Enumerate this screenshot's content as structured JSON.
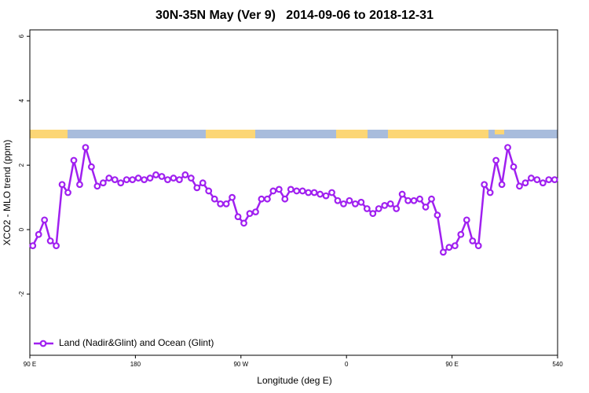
{
  "chart_data": {
    "type": "line",
    "title": "30N-35N May (Ver 9)   2014-09-06 to 2018-12-31",
    "xlabel": "Longitude (deg E)",
    "ylabel": "XCO2 - MLO trend (ppm)",
    "x": [
      92.5,
      97.5,
      102.5,
      107.5,
      112.5,
      117.5,
      122.5,
      127.5,
      132.5,
      137.5,
      142.5,
      147.5,
      152.5,
      157.5,
      162.5,
      167.5,
      172.5,
      177.5,
      182.5,
      187.5,
      192.5,
      197.5,
      202.5,
      207.5,
      212.5,
      217.5,
      222.5,
      227.5,
      232.5,
      237.5,
      242.5,
      247.5,
      252.5,
      257.5,
      262.5,
      267.5,
      272.5,
      277.5,
      282.5,
      287.5,
      292.5,
      297.5,
      302.5,
      307.5,
      312.5,
      317.5,
      322.5,
      327.5,
      332.5,
      337.5,
      342.5,
      347.5,
      352.5,
      357.5,
      362.5,
      367.5,
      372.5,
      377.5,
      382.5,
      387.5,
      392.5,
      397.5,
      402.5,
      407.5,
      412.5,
      417.5,
      422.5,
      427.5,
      432.5,
      437.5,
      442.5,
      447.5,
      452.5,
      457.5,
      462.5,
      467.5,
      472.5,
      477.5,
      482.5,
      487.5,
      492.5,
      497.5,
      502.5,
      507.5,
      512.5,
      517.5,
      522.5,
      527.5,
      532.5,
      537.5
    ],
    "series": [
      {
        "name": "Land (Nadir&Glint) and Ocean (Glint)",
        "color": "#a020f0",
        "values": [
          -0.5,
          -0.15,
          0.3,
          -0.35,
          -0.5,
          1.4,
          1.15,
          2.15,
          1.4,
          2.55,
          1.95,
          1.35,
          1.45,
          1.6,
          1.55,
          1.45,
          1.55,
          1.55,
          1.6,
          1.55,
          1.6,
          1.7,
          1.65,
          1.55,
          1.6,
          1.55,
          1.7,
          1.6,
          1.3,
          1.45,
          1.2,
          0.95,
          0.8,
          0.8,
          1.0,
          0.4,
          0.2,
          0.5,
          0.55,
          0.95,
          0.95,
          1.2,
          1.25,
          0.95,
          1.25,
          1.2,
          1.2,
          1.15,
          1.15,
          1.1,
          1.05,
          1.15,
          0.9,
          0.8,
          0.9,
          0.8,
          0.85,
          0.65,
          0.5,
          0.65,
          0.75,
          0.8,
          0.65,
          1.1,
          0.9,
          0.9,
          0.95,
          0.7,
          0.95,
          0.45,
          -0.7,
          -0.55,
          -0.5,
          -0.15,
          0.3,
          -0.35,
          -0.5,
          1.4,
          1.15,
          2.15,
          1.4,
          2.55,
          1.95,
          1.35,
          1.45,
          1.6,
          1.55,
          1.45,
          1.55,
          1.55
        ]
      }
    ],
    "xlim": [
      90,
      540
    ],
    "xticks": [
      {
        "value": 90,
        "label": "90 E"
      },
      180,
      {
        "value": 270,
        "label": "90 W"
      },
      {
        "value": 360,
        "label": "0"
      },
      {
        "value": 450,
        "label": "90 E"
      },
      540
    ],
    "ylim": [
      -3.9,
      6.2
    ],
    "yticks": [
      -2,
      0,
      2,
      4,
      6
    ],
    "legend": "bottomleft"
  }
}
